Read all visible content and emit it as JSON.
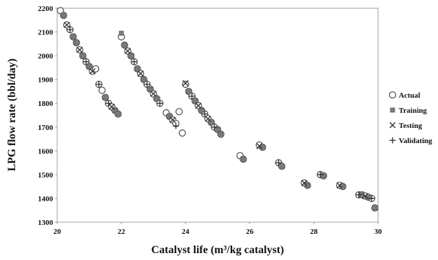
{
  "chart_data": {
    "type": "scatter",
    "xlabel": "Catalyst life (m³/kg catalyst)",
    "ylabel": "LPG flow rate (bbl/day)",
    "xlim": [
      20,
      30
    ],
    "ylim": [
      1300,
      2200
    ],
    "xticks": [
      "20",
      "22",
      "24",
      "26",
      "28",
      "30"
    ],
    "yticks": [
      "1300",
      "1400",
      "1500",
      "1600",
      "1700",
      "1800",
      "1900",
      "2000",
      "2100",
      "2200"
    ],
    "grid": false,
    "legend_position": "right",
    "series": [
      {
        "name": "Actual",
        "marker": "circle",
        "points": [
          [
            20.1,
            2190
          ],
          [
            20.2,
            2170
          ],
          [
            20.3,
            2130
          ],
          [
            20.4,
            2110
          ],
          [
            20.5,
            2080
          ],
          [
            20.6,
            2055
          ],
          [
            20.7,
            2025
          ],
          [
            20.8,
            2000
          ],
          [
            20.9,
            1975
          ],
          [
            21.0,
            1955
          ],
          [
            21.1,
            1935
          ],
          [
            21.2,
            1945
          ],
          [
            21.3,
            1880
          ],
          [
            21.4,
            1855
          ],
          [
            21.5,
            1825
          ],
          [
            21.6,
            1800
          ],
          [
            21.7,
            1785
          ],
          [
            21.8,
            1770
          ],
          [
            21.9,
            1755
          ],
          [
            22.0,
            2080
          ],
          [
            22.1,
            2045
          ],
          [
            22.2,
            2020
          ],
          [
            22.3,
            2000
          ],
          [
            22.4,
            1975
          ],
          [
            22.5,
            1945
          ],
          [
            22.6,
            1925
          ],
          [
            22.7,
            1900
          ],
          [
            22.8,
            1880
          ],
          [
            22.9,
            1860
          ],
          [
            23.0,
            1840
          ],
          [
            23.1,
            1820
          ],
          [
            23.2,
            1800
          ],
          [
            23.4,
            1760
          ],
          [
            23.5,
            1745
          ],
          [
            23.6,
            1730
          ],
          [
            23.7,
            1715
          ],
          [
            23.8,
            1765
          ],
          [
            23.9,
            1675
          ],
          [
            24.0,
            1880
          ],
          [
            24.1,
            1850
          ],
          [
            24.2,
            1830
          ],
          [
            24.3,
            1810
          ],
          [
            24.4,
            1790
          ],
          [
            24.5,
            1770
          ],
          [
            24.6,
            1755
          ],
          [
            24.7,
            1735
          ],
          [
            24.8,
            1720
          ],
          [
            24.9,
            1700
          ],
          [
            25.0,
            1690
          ],
          [
            25.1,
            1670
          ],
          [
            25.7,
            1580
          ],
          [
            25.8,
            1565
          ],
          [
            26.3,
            1625
          ],
          [
            26.4,
            1615
          ],
          [
            26.9,
            1550
          ],
          [
            27.0,
            1535
          ],
          [
            27.7,
            1465
          ],
          [
            27.8,
            1455
          ],
          [
            28.2,
            1500
          ],
          [
            28.3,
            1495
          ],
          [
            28.8,
            1455
          ],
          [
            28.9,
            1450
          ],
          [
            29.4,
            1415
          ],
          [
            29.5,
            1415
          ],
          [
            29.6,
            1410
          ],
          [
            29.7,
            1405
          ],
          [
            29.8,
            1400
          ],
          [
            29.9,
            1360
          ]
        ]
      },
      {
        "name": "Training",
        "marker": "square",
        "points": [
          [
            20.2,
            2170
          ],
          [
            20.5,
            2080
          ],
          [
            20.6,
            2055
          ],
          [
            20.8,
            2000
          ],
          [
            21.0,
            1955
          ],
          [
            21.5,
            1825
          ],
          [
            21.8,
            1770
          ],
          [
            21.9,
            1755
          ],
          [
            22.0,
            2095
          ],
          [
            22.1,
            2045
          ],
          [
            22.3,
            2000
          ],
          [
            22.5,
            1945
          ],
          [
            22.7,
            1900
          ],
          [
            22.9,
            1860
          ],
          [
            23.1,
            1820
          ],
          [
            23.5,
            1745
          ],
          [
            24.1,
            1850
          ],
          [
            24.3,
            1810
          ],
          [
            24.5,
            1770
          ],
          [
            24.8,
            1720
          ],
          [
            25.0,
            1690
          ],
          [
            25.1,
            1670
          ],
          [
            25.8,
            1565
          ],
          [
            26.4,
            1615
          ],
          [
            27.0,
            1535
          ],
          [
            27.8,
            1455
          ],
          [
            28.3,
            1495
          ],
          [
            28.9,
            1450
          ],
          [
            29.5,
            1415
          ],
          [
            29.7,
            1405
          ],
          [
            29.9,
            1360
          ]
        ]
      },
      {
        "name": "Testing",
        "marker": "x",
        "points": [
          [
            20.3,
            2130
          ],
          [
            20.7,
            2025
          ],
          [
            21.1,
            1935
          ],
          [
            21.7,
            1785
          ],
          [
            22.2,
            2020
          ],
          [
            22.6,
            1925
          ],
          [
            23.0,
            1840
          ],
          [
            23.6,
            1730
          ],
          [
            24.0,
            1885
          ],
          [
            24.4,
            1790
          ],
          [
            24.7,
            1735
          ],
          [
            26.3,
            1620
          ],
          [
            27.7,
            1465
          ],
          [
            28.8,
            1455
          ],
          [
            29.6,
            1410
          ]
        ]
      },
      {
        "name": "Validating",
        "marker": "plus",
        "points": [
          [
            20.4,
            2110
          ],
          [
            20.9,
            1975
          ],
          [
            21.3,
            1880
          ],
          [
            21.6,
            1800
          ],
          [
            22.4,
            1975
          ],
          [
            22.8,
            1880
          ],
          [
            23.2,
            1800
          ],
          [
            23.7,
            1705
          ],
          [
            24.2,
            1830
          ],
          [
            24.6,
            1755
          ],
          [
            24.9,
            1700
          ],
          [
            26.9,
            1550
          ],
          [
            28.2,
            1500
          ],
          [
            29.4,
            1415
          ],
          [
            29.8,
            1400
          ]
        ]
      }
    ]
  }
}
